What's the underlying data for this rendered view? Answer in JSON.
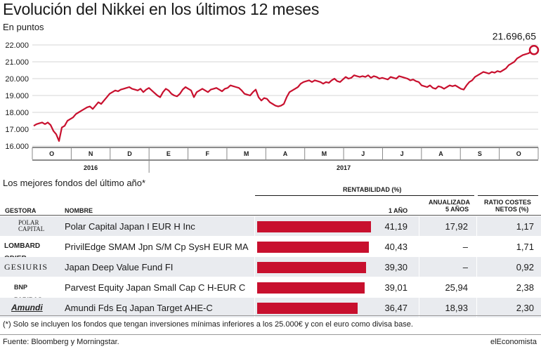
{
  "header": {
    "title": "Evolución del Nikkei en los últimos 12 meses",
    "subtitle": "En puntos"
  },
  "chart_data": {
    "type": "line",
    "title": "Evolución del Nikkei en los últimos 12 meses",
    "ylabel": "En puntos",
    "ylim": [
      16000,
      22000
    ],
    "yticks": [
      16000,
      17000,
      18000,
      19000,
      20000,
      21000,
      22000
    ],
    "ytick_labels": [
      "16.000",
      "17.000",
      "18.000",
      "19.000",
      "20.000",
      "21.000",
      "22.000"
    ],
    "months": [
      "O",
      "N",
      "D",
      "E",
      "F",
      "M",
      "A",
      "M",
      "J",
      "J",
      "A",
      "S",
      "O"
    ],
    "years": [
      "2016",
      "2017"
    ],
    "color": "#c8102e",
    "last_value_label": "21.696,65",
    "series": [
      {
        "values": [
          17200,
          17300,
          17350,
          17400,
          17300,
          17400,
          17250,
          16900,
          16700,
          16300,
          17100,
          17200,
          17500,
          17600,
          17700,
          17900,
          18000,
          18100,
          18200,
          18300,
          18350,
          18200,
          18400,
          18600,
          18500,
          18700,
          18900,
          19100,
          19200,
          19300,
          19250,
          19350,
          19400,
          19450,
          19500,
          19400,
          19350,
          19300,
          19400,
          19200,
          19350,
          19450,
          19300,
          19150,
          19000,
          18900,
          19200,
          19400,
          19300,
          19100,
          19000,
          18950,
          19100,
          19350,
          19500,
          19400,
          19300,
          18900,
          19200,
          19300,
          19400,
          19300,
          19200,
          19350,
          19400,
          19450,
          19350,
          19250,
          19400,
          19450,
          19600,
          19550,
          19500,
          19450,
          19300,
          19100,
          19050,
          19000,
          19200,
          19350,
          18900,
          18700,
          18850,
          18800,
          18600,
          18500,
          18400,
          18350,
          18400,
          18500,
          18900,
          19200,
          19300,
          19400,
          19500,
          19700,
          19800,
          19850,
          19900,
          19800,
          19900,
          19850,
          19800,
          19700,
          19800,
          19750,
          19900,
          20000,
          19850,
          19800,
          19950,
          20100,
          20000,
          20050,
          20200,
          20150,
          20100,
          20150,
          20100,
          20200,
          20050,
          20150,
          20100,
          20000,
          20050,
          20000,
          19950,
          20100,
          20050,
          20000,
          20150,
          20100,
          20050,
          20000,
          19900,
          19950,
          19850,
          19800,
          19600,
          19550,
          19500,
          19600,
          19450,
          19400,
          19550,
          19500,
          19400,
          19500,
          19600,
          19550,
          19600,
          19500,
          19400,
          19350,
          19600,
          19800,
          19900,
          20100,
          20200,
          20300,
          20400,
          20350,
          20300,
          20400,
          20350,
          20450,
          20400,
          20500,
          20600,
          20800,
          20900,
          21000,
          21200,
          21300,
          21400,
          21450,
          21500,
          21600,
          21696.65
        ]
      }
    ]
  },
  "funds": {
    "title": "Los mejores fondos del último año*",
    "headers": {
      "rentabilidad": "RENTABILIDAD (%)",
      "gestora": "GESTORA",
      "nombre": "NOMBRE",
      "un_ano": "1 AÑO",
      "anualizada_1": "ANUALIZADA",
      "anualizada_2": "5 AÑOS",
      "ratio_1": "RATIO COSTES",
      "ratio_2": "NETOS (%)"
    },
    "rows": [
      {
        "gestora": "POLAR CAPITAL",
        "nombre": "Polar Capital Japan I EUR H Inc",
        "un_ano": 41.19,
        "un_ano_text": "41,19",
        "anualizada": "17,92",
        "ratio": "1,17"
      },
      {
        "gestora": "LOMBARD ODIER",
        "nombre": "PrivilEdge SMAM Jpn S/M Cp SysH EUR MA",
        "un_ano": 40.43,
        "un_ano_text": "40,43",
        "anualizada": "–",
        "ratio": "1,71"
      },
      {
        "gestora": "GESIURIS",
        "nombre": "Japan Deep Value Fund FI",
        "un_ano": 39.3,
        "un_ano_text": "39,30",
        "anualizada": "–",
        "ratio": "0,92"
      },
      {
        "gestora": "BNP PARIBAS",
        "nombre": "Parvest Equity Japan Small Cap C H-EUR C",
        "un_ano": 39.01,
        "un_ano_text": "39,01",
        "anualizada": "25,94",
        "ratio": "2,38"
      },
      {
        "gestora": "Amundi",
        "nombre": "Amundi Fds Eq Japan Target AHE-C",
        "un_ano": 36.47,
        "un_ano_text": "36,47",
        "anualizada": "18,93",
        "ratio": "2,30"
      }
    ],
    "footnote": "(*) Solo se incluyen los fondos que tengan inversiones mínimas inferiores a los 25.000€ y con el euro como divisa base."
  },
  "footer": {
    "source": "Fuente: Bloomberg y Morningstar.",
    "brand": "elEconomista"
  }
}
